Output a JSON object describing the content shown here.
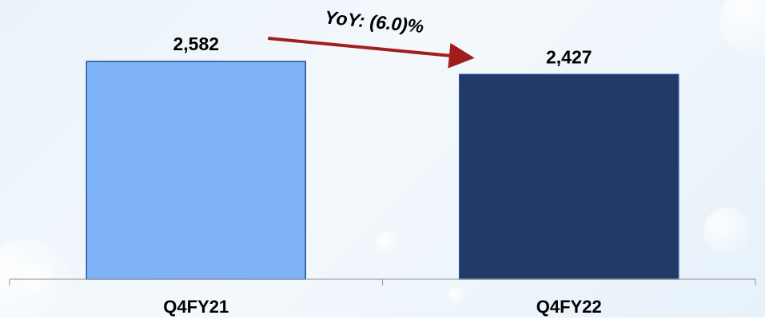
{
  "chart_data": {
    "type": "bar",
    "categories": [
      "Q4FY21",
      "Q4FY22"
    ],
    "values": [
      2582,
      2427
    ],
    "value_labels": [
      "2,582",
      "2,427"
    ],
    "title": "",
    "xlabel": "",
    "ylabel": "",
    "ylim": [
      0,
      2582
    ],
    "grid": false,
    "legend": "none",
    "bar_colors": [
      "#7eb3f7",
      "#233a66"
    ],
    "bar_edge_color": "#1f4e9a",
    "axis_color": "#a6a6a6",
    "annotation": {
      "text": "YoY: (6.0)%",
      "arrow_color": "#a01e1e"
    }
  }
}
